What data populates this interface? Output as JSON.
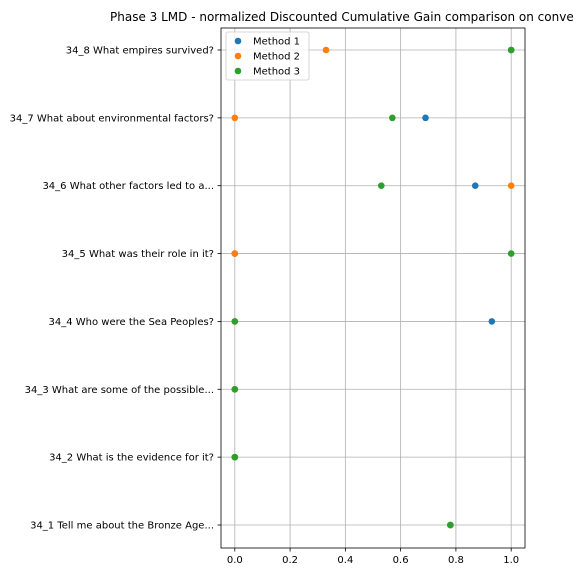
{
  "chart_data": {
    "type": "scatter",
    "title": "Phase 3 LMD - normalized Discounted Cumulative Gain comparison on conve",
    "xlabel": "",
    "ylabel": "",
    "xlim": [
      -0.05,
      1.05
    ],
    "x_ticks": [
      "0.0",
      "0.2",
      "0.4",
      "0.6",
      "0.8",
      "1.0"
    ],
    "x_tick_values": [
      0.0,
      0.2,
      0.4,
      0.6,
      0.8,
      1.0
    ],
    "categories": [
      "34_1 Tell me about the Bronze Age...",
      "34_2 What is the evidence for it?",
      "34_3 What are some of the possible...",
      "34_4 Who were the Sea Peoples?",
      "34_5 What was their role in it?",
      "34_6 What other factors led to a...",
      "34_7 What about environmental factors?",
      "34_8 What empires survived?"
    ],
    "grid": true,
    "legend_position": "top-left",
    "series": [
      {
        "name": "Method 1",
        "color": "#1f77b4",
        "values": [
          0.78,
          0.0,
          0.0,
          0.93,
          0.0,
          0.87,
          0.69,
          1.0
        ]
      },
      {
        "name": "Method 2",
        "color": "#ff7f0e",
        "values": [
          0.78,
          0.0,
          0.0,
          0.0,
          0.0,
          1.0,
          0.0,
          0.33
        ]
      },
      {
        "name": "Method 3",
        "color": "#2ca02c",
        "values": [
          0.78,
          0.0,
          0.0,
          0.0,
          1.0,
          0.53,
          0.57,
          1.0
        ]
      }
    ]
  }
}
